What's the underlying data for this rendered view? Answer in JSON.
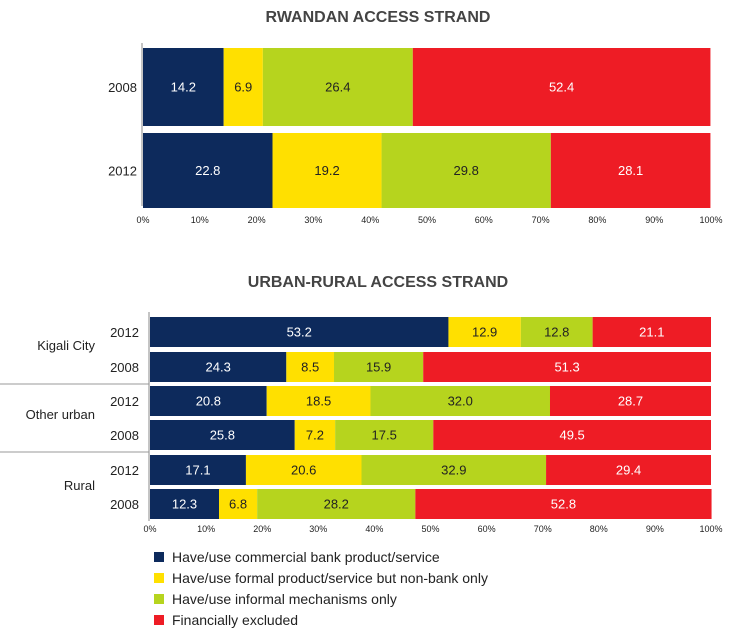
{
  "legend": [
    {
      "name": "Have/use commercial bank product/service",
      "color": "#0d2a5c"
    },
    {
      "name": "Have/use formal product/service but non-bank only",
      "color": "#ffe000"
    },
    {
      "name": "Have/use informal mechanisms only",
      "color": "#b6d41e"
    },
    {
      "name": "Financially excluded",
      "color": "#ee1c25"
    }
  ],
  "chart_data": [
    {
      "type": "bar",
      "orientation": "horizontal",
      "stacked": true,
      "title": "RWANDAN ACCESS STRAND",
      "xlim": [
        0,
        100
      ],
      "xticks": [
        "0%",
        "10%",
        "20%",
        "30%",
        "40%",
        "50%",
        "60%",
        "70%",
        "80%",
        "90%",
        "100%"
      ],
      "categories": [
        "2008",
        "2012"
      ],
      "series": [
        {
          "name": "Have/use commercial bank product/service",
          "values": [
            14.2,
            22.8
          ]
        },
        {
          "name": "Have/use formal product/service but non-bank only",
          "values": [
            6.9,
            19.2
          ]
        },
        {
          "name": "Have/use informal mechanisms only",
          "values": [
            26.4,
            29.8
          ]
        },
        {
          "name": "Financially excluded",
          "values": [
            52.4,
            28.1
          ]
        }
      ]
    },
    {
      "type": "bar",
      "orientation": "horizontal",
      "stacked": true,
      "title": "URBAN-RURAL ACCESS STRAND",
      "xlim": [
        0,
        100
      ],
      "xticks": [
        "0%",
        "10%",
        "20%",
        "30%",
        "40%",
        "50%",
        "60%",
        "70%",
        "80%",
        "90%",
        "100%"
      ],
      "groups": [
        "Kigali City",
        "Other urban",
        "Rural"
      ],
      "categories": [
        "2012",
        "2008",
        "2012",
        "2008",
        "2012",
        "2008"
      ],
      "series": [
        {
          "name": "Have/use commercial bank product/service",
          "values": [
            53.2,
            24.3,
            20.8,
            25.8,
            17.1,
            12.3
          ]
        },
        {
          "name": "Have/use formal product/service but non-bank only",
          "values": [
            12.9,
            8.5,
            18.5,
            7.2,
            20.6,
            6.8
          ]
        },
        {
          "name": "Have/use informal mechanisms only",
          "values": [
            12.8,
            15.9,
            32.0,
            17.5,
            32.9,
            28.2
          ]
        },
        {
          "name": "Financially excluded",
          "values": [
            21.1,
            51.3,
            28.7,
            49.5,
            29.4,
            52.8
          ]
        }
      ]
    }
  ]
}
